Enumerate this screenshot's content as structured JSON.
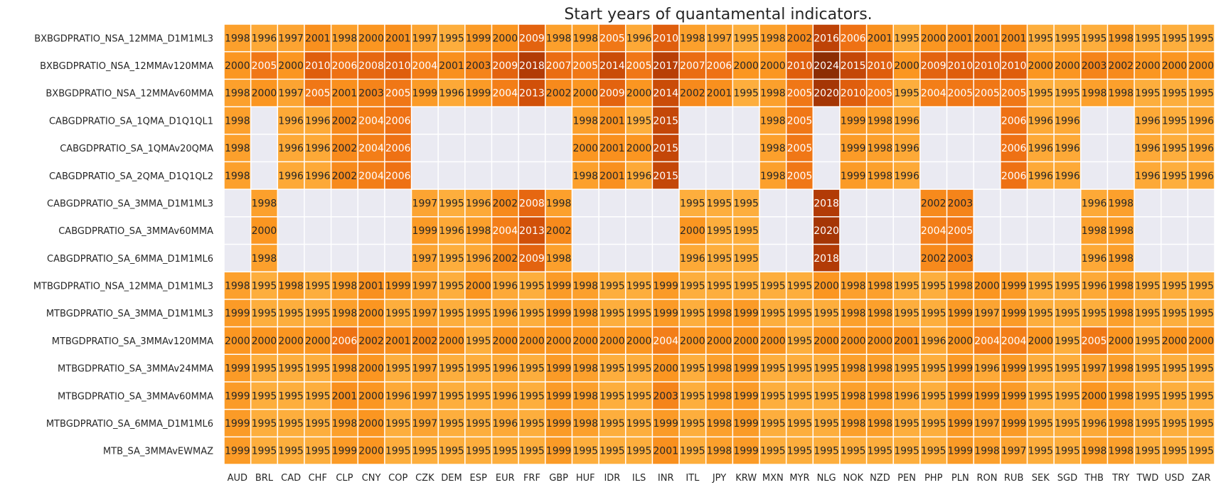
{
  "chart_data": {
    "type": "heatmap",
    "title": "Start years of quantamental indicators.",
    "xlabel": "",
    "ylabel": "",
    "legend": "none",
    "missing_color": "#eaeaf2",
    "colormap": "YlOrBr",
    "value_range": [
      1995,
      2024
    ],
    "columns": [
      "AUD",
      "BRL",
      "CAD",
      "CHF",
      "CLP",
      "CNY",
      "COP",
      "CZK",
      "DEM",
      "ESP",
      "EUR",
      "FRF",
      "GBP",
      "HUF",
      "IDR",
      "ILS",
      "INR",
      "ITL",
      "JPY",
      "KRW",
      "MXN",
      "MYR",
      "NLG",
      "NOK",
      "NZD",
      "PEN",
      "PHP",
      "PLN",
      "RON",
      "RUB",
      "SEK",
      "SGD",
      "THB",
      "TRY",
      "TWD",
      "USD",
      "ZAR"
    ],
    "rows": [
      {
        "label": "BXBGDPRATIO_NSA_12MMA_D1M1ML3",
        "values": [
          1998,
          1996,
          1997,
          2001,
          1998,
          2000,
          2001,
          1997,
          1995,
          1999,
          2000,
          2009,
          1998,
          1998,
          2005,
          1996,
          2010,
          1998,
          1997,
          1995,
          1998,
          2002,
          2016,
          2006,
          2001,
          1995,
          2000,
          2001,
          2001,
          2001,
          1995,
          1995,
          1995,
          1998,
          1995,
          1995,
          1995
        ]
      },
      {
        "label": "BXBGDPRATIO_NSA_12MMAv120MMA",
        "values": [
          2000,
          2005,
          2000,
          2010,
          2006,
          2008,
          2010,
          2004,
          2001,
          2003,
          2009,
          2018,
          2007,
          2005,
          2014,
          2005,
          2017,
          2007,
          2006,
          2000,
          2000,
          2010,
          2024,
          2015,
          2010,
          2000,
          2009,
          2010,
          2010,
          2010,
          2000,
          2000,
          2003,
          2002,
          2000,
          2000,
          2000
        ]
      },
      {
        "label": "BXBGDPRATIO_NSA_12MMAv60MMA",
        "values": [
          1998,
          2000,
          1997,
          2005,
          2001,
          2003,
          2005,
          1999,
          1996,
          1999,
          2004,
          2013,
          2002,
          2000,
          2009,
          2000,
          2014,
          2002,
          2001,
          1995,
          1998,
          2005,
          2020,
          2010,
          2005,
          1995,
          2004,
          2005,
          2005,
          2005,
          1995,
          1995,
          1998,
          1998,
          1995,
          1995,
          1995
        ]
      },
      {
        "label": "CABGDPRATIO_SA_1QMA_D1Q1QL1",
        "values": [
          1998,
          null,
          1996,
          1996,
          2002,
          2004,
          2006,
          null,
          null,
          null,
          null,
          null,
          null,
          1998,
          2001,
          1995,
          2015,
          null,
          null,
          null,
          1998,
          2005,
          null,
          1999,
          1998,
          1996,
          null,
          null,
          null,
          2006,
          1996,
          1996,
          null,
          null,
          1996,
          1995,
          1996
        ]
      },
      {
        "label": "CABGDPRATIO_SA_1QMAv20QMA",
        "values": [
          1998,
          null,
          1996,
          1996,
          2002,
          2004,
          2006,
          null,
          null,
          null,
          null,
          null,
          null,
          2000,
          2001,
          2000,
          2015,
          null,
          null,
          null,
          1998,
          2005,
          null,
          1999,
          1998,
          1996,
          null,
          null,
          null,
          2006,
          1996,
          1996,
          null,
          null,
          1996,
          1995,
          1996
        ]
      },
      {
        "label": "CABGDPRATIO_SA_2QMA_D1Q1QL2",
        "values": [
          1998,
          null,
          1996,
          1996,
          2002,
          2004,
          2006,
          null,
          null,
          null,
          null,
          null,
          null,
          1998,
          2001,
          1996,
          2015,
          null,
          null,
          null,
          1998,
          2005,
          null,
          1999,
          1998,
          1996,
          null,
          null,
          null,
          2006,
          1996,
          1996,
          null,
          null,
          1996,
          1995,
          1996
        ]
      },
      {
        "label": "CABGDPRATIO_SA_3MMA_D1M1ML3",
        "values": [
          null,
          1998,
          null,
          null,
          null,
          null,
          null,
          1997,
          1995,
          1996,
          2002,
          2008,
          1998,
          null,
          null,
          null,
          null,
          1995,
          1995,
          1995,
          null,
          null,
          2018,
          null,
          null,
          null,
          2002,
          2003,
          null,
          null,
          null,
          null,
          1996,
          1998,
          null,
          null,
          null
        ]
      },
      {
        "label": "CABGDPRATIO_SA_3MMAv60MMA",
        "values": [
          null,
          2000,
          null,
          null,
          null,
          null,
          null,
          1999,
          1996,
          1998,
          2004,
          2013,
          2002,
          null,
          null,
          null,
          null,
          2000,
          1995,
          1995,
          null,
          null,
          2020,
          null,
          null,
          null,
          2004,
          2005,
          null,
          null,
          null,
          null,
          1998,
          1998,
          null,
          null,
          null
        ]
      },
      {
        "label": "CABGDPRATIO_SA_6MMA_D1M1ML6",
        "values": [
          null,
          1998,
          null,
          null,
          null,
          null,
          null,
          1997,
          1995,
          1996,
          2002,
          2009,
          1998,
          null,
          null,
          null,
          null,
          1996,
          1995,
          1995,
          null,
          null,
          2018,
          null,
          null,
          null,
          2002,
          2003,
          null,
          null,
          null,
          null,
          1996,
          1998,
          null,
          null,
          null
        ]
      },
      {
        "label": "MTBGDPRATIO_NSA_12MMA_D1M1ML3",
        "values": [
          1998,
          1995,
          1998,
          1995,
          1998,
          2001,
          1999,
          1997,
          1995,
          2000,
          1996,
          1995,
          1999,
          1998,
          1995,
          1995,
          1999,
          1995,
          1995,
          1995,
          1995,
          1995,
          2000,
          1998,
          1998,
          1995,
          1995,
          1998,
          2000,
          1999,
          1995,
          1995,
          1996,
          1998,
          1995,
          1995,
          1995
        ]
      },
      {
        "label": "MTBGDPRATIO_SA_3MMA_D1M1ML3",
        "values": [
          1999,
          1995,
          1995,
          1995,
          1998,
          2000,
          1995,
          1997,
          1995,
          1995,
          1996,
          1995,
          1999,
          1998,
          1995,
          1995,
          1999,
          1995,
          1998,
          1999,
          1995,
          1995,
          1995,
          1998,
          1998,
          1995,
          1995,
          1999,
          1997,
          1999,
          1995,
          1995,
          1995,
          1998,
          1995,
          1995,
          1995
        ]
      },
      {
        "label": "MTBGDPRATIO_SA_3MMAv120MMA",
        "values": [
          2000,
          2000,
          2000,
          2000,
          2006,
          2002,
          2001,
          2002,
          2000,
          1995,
          2000,
          2000,
          2000,
          2000,
          2000,
          2000,
          2004,
          2000,
          2000,
          2000,
          2000,
          1995,
          2000,
          2000,
          2000,
          2001,
          1996,
          2000,
          2004,
          2004,
          2000,
          1995,
          2005,
          2000,
          1995,
          2000,
          2000
        ]
      },
      {
        "label": "MTBGDPRATIO_SA_3MMAv24MMA",
        "values": [
          1999,
          1995,
          1995,
          1995,
          1998,
          2000,
          1995,
          1997,
          1995,
          1995,
          1996,
          1995,
          1999,
          1998,
          1995,
          1995,
          2000,
          1995,
          1998,
          1999,
          1995,
          1995,
          1995,
          1998,
          1998,
          1995,
          1995,
          1999,
          1996,
          1999,
          1995,
          1995,
          1997,
          1998,
          1995,
          1995,
          1995
        ]
      },
      {
        "label": "MTBGDPRATIO_SA_3MMAv60MMA",
        "values": [
          1999,
          1995,
          1995,
          1995,
          2001,
          2000,
          1996,
          1997,
          1995,
          1995,
          1996,
          1995,
          1999,
          1998,
          1995,
          1995,
          2003,
          1995,
          1998,
          1999,
          1995,
          1995,
          1995,
          1998,
          1998,
          1996,
          1995,
          1999,
          1999,
          1999,
          1995,
          1995,
          2000,
          1998,
          1995,
          1995,
          1995
        ]
      },
      {
        "label": "MTBGDPRATIO_SA_6MMA_D1M1ML6",
        "values": [
          1999,
          1995,
          1995,
          1995,
          1998,
          2000,
          1995,
          1997,
          1995,
          1995,
          1996,
          1995,
          1999,
          1998,
          1995,
          1995,
          1999,
          1995,
          1998,
          1999,
          1995,
          1995,
          1995,
          1998,
          1998,
          1995,
          1995,
          1999,
          1997,
          1999,
          1995,
          1995,
          1996,
          1998,
          1995,
          1995,
          1995
        ]
      },
      {
        "label": "MTB_SA_3MMAvEWMAZ",
        "values": [
          1999,
          1995,
          1995,
          1995,
          1999,
          2000,
          1995,
          1995,
          1995,
          1995,
          1995,
          1995,
          1999,
          1995,
          1995,
          1995,
          2001,
          1995,
          1998,
          1999,
          1995,
          1995,
          1995,
          1995,
          1995,
          1995,
          1995,
          1999,
          1998,
          1997,
          1995,
          1995,
          1998,
          1998,
          1995,
          1995,
          1995
        ]
      }
    ]
  }
}
